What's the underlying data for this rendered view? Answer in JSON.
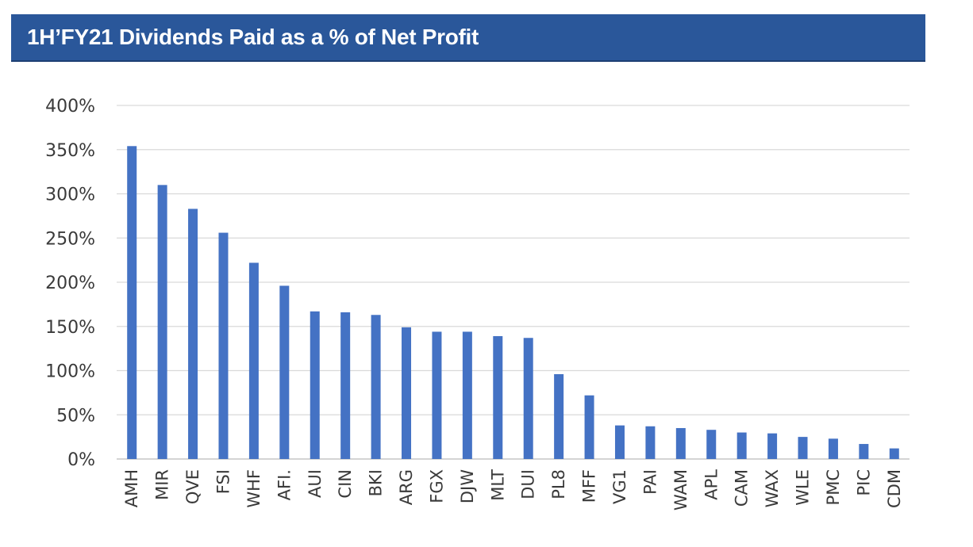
{
  "chart_data": {
    "type": "bar",
    "title": "1H’FY21 Dividends Paid as a % of Net Profit",
    "xlabel": "",
    "ylabel": "",
    "y_unit": "%",
    "ylim": [
      0,
      400
    ],
    "y_ticks": [
      0,
      50,
      100,
      150,
      200,
      250,
      300,
      350,
      400
    ],
    "grid": true,
    "legend": "none",
    "bar_color": "#4472c4",
    "categories": [
      "AMH",
      "MIR",
      "QVE",
      "FSI",
      "WHF",
      "AFI.",
      "AUI",
      "CIN",
      "BKI",
      "ARG",
      "FGX",
      "DJW",
      "MLT",
      "DUI",
      "PL8",
      "MFF",
      "VG1",
      "PAI",
      "WAM",
      "APL",
      "CAM",
      "WAX",
      "WLE",
      "PMC",
      "PIC",
      "CDM"
    ],
    "values": [
      354,
      310,
      283,
      256,
      222,
      196,
      167,
      166,
      163,
      149,
      144,
      144,
      139,
      137,
      96,
      72,
      38,
      37,
      35,
      33,
      30,
      29,
      25,
      23,
      17,
      12
    ]
  },
  "colors": {
    "banner": "#2a579a",
    "grid": "#d9d9d9",
    "bar": "#4472c4",
    "text": "#3a3a3a"
  }
}
